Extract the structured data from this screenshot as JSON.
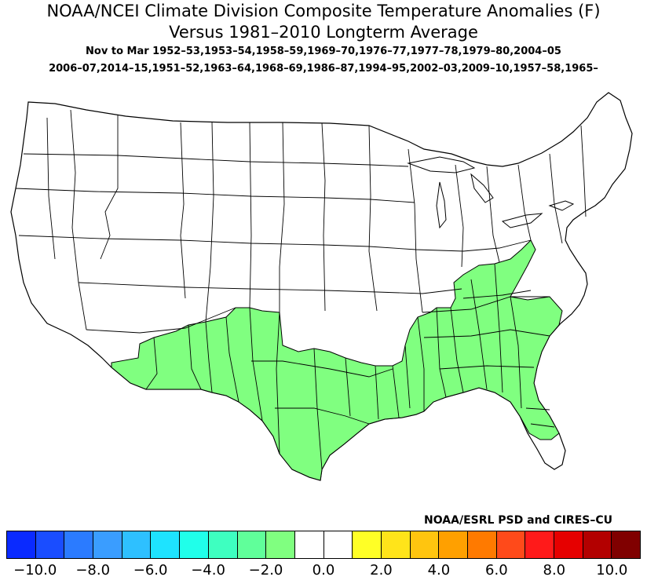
{
  "title_line1": "NOAA/NCEI Climate Division Composite Temperature Anomalies (F)",
  "title_line2": "Versus 1981–2010 Longterm Average",
  "period_line": "Nov to Mar  1952–53,1953–54,1958–59,1969–70,1976–77,1977–78,1979–80,2004–05",
  "years_line2": "2006–07,2014–15,1951–52,1963–64,1968–69,1986–87,1994–95,2002–03,2009–10,1957–58,1965–",
  "credit": "NOAA/ESRL PSD and CIRES–CU",
  "map": {
    "region": "Contiguous United States",
    "land_color": "#ffffff",
    "outline_color": "#000000",
    "anomaly_fill_color": "#80ff80",
    "anomaly_range_shaded": "-2.0 to -1.0",
    "shaded_region": "Southern tier: SE Arizona, southern New Mexico, Texas, Louisiana, Mississippi, Alabama, Georgia, Florida, South Carolina, Tennessee, Kentucky, southern West Virginia, western North Carolina and Virginia"
  },
  "colorbar": {
    "colors": [
      "#0a2aff",
      "#1a4dff",
      "#2b7bff",
      "#3a9dff",
      "#2ec0ff",
      "#1ee3ff",
      "#20ffea",
      "#3effc0",
      "#60ff9a",
      "#80ff80",
      "#ffffff",
      "#ffffff",
      "#ffff26",
      "#ffe41a",
      "#ffc50f",
      "#ffa000",
      "#ff7a00",
      "#ff4a1a",
      "#ff1a1a",
      "#e60000",
      "#b30000",
      "#800000"
    ],
    "tick_labels": [
      "−10.0",
      "−8.0",
      "−6.0",
      "−4.0",
      "−2.0",
      "0.0",
      "2.0",
      "4.0",
      "6.0",
      "8.0",
      "10.0"
    ]
  }
}
